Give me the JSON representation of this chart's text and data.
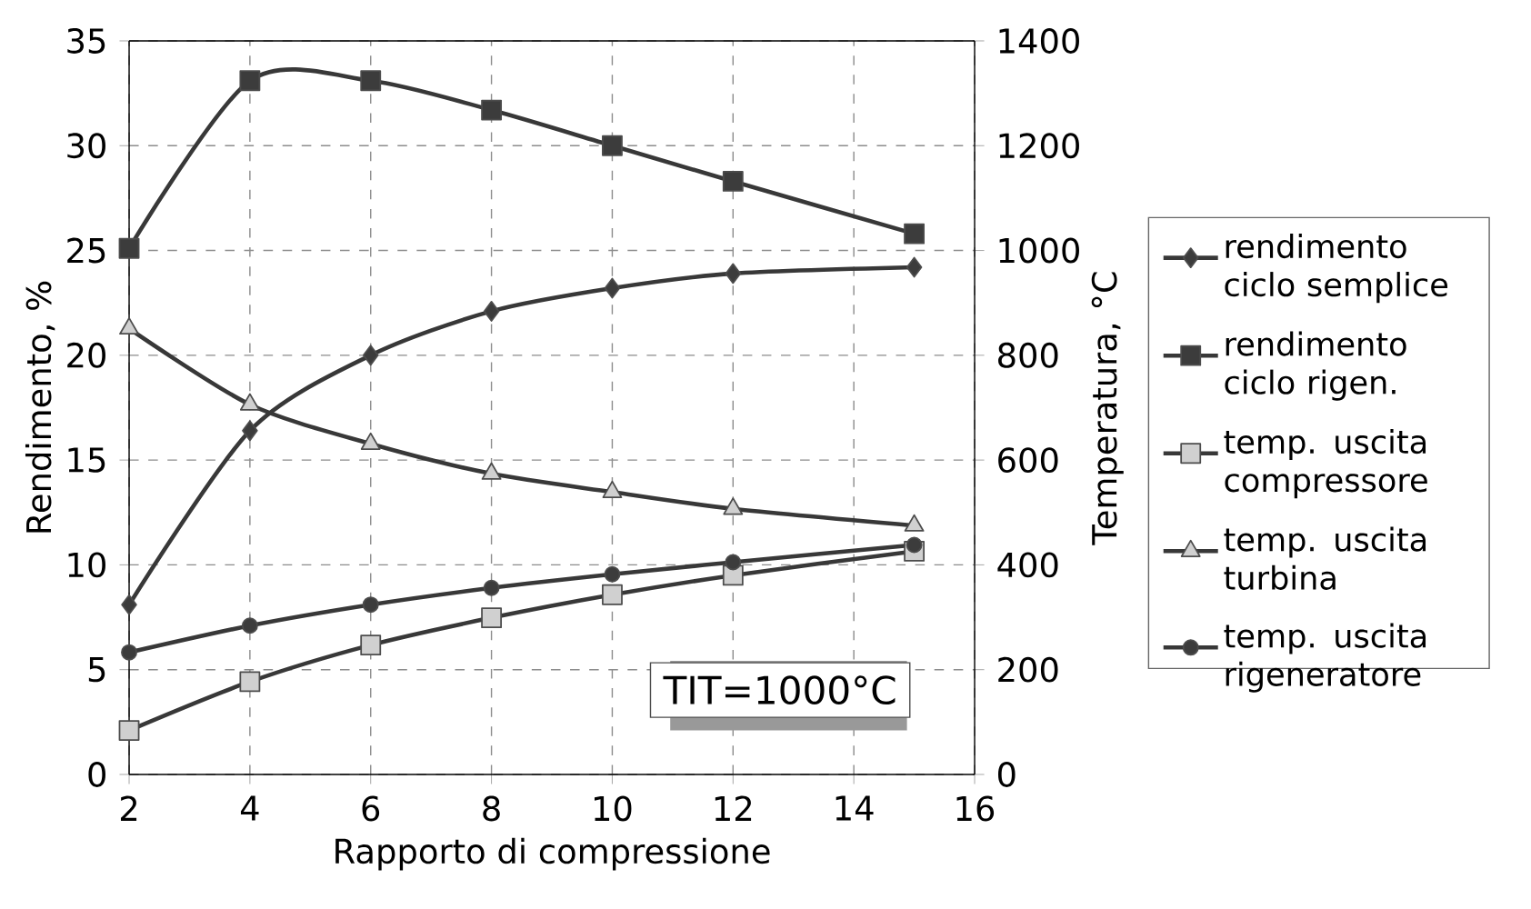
{
  "chart_data": {
    "type": "line",
    "xlabel": "Rapporto di compressione",
    "ylabel": "Rendimento, %",
    "y2label": "Temperatura, °C",
    "x": [
      2,
      4,
      6,
      8,
      10,
      12,
      15
    ],
    "xlim": [
      2,
      16
    ],
    "xticks": [
      2,
      4,
      6,
      8,
      10,
      12,
      14,
      16
    ],
    "ylim": [
      0,
      35
    ],
    "yticks": [
      0,
      5,
      10,
      15,
      20,
      25,
      30,
      35
    ],
    "y2lim": [
      0,
      1400
    ],
    "y2ticks": [
      0,
      200,
      400,
      600,
      800,
      1000,
      1200,
      1400
    ],
    "grid": true,
    "legend": "right",
    "annotations": [
      "TIT=1000°C"
    ],
    "series": [
      {
        "name": "rendimento ciclo semplice",
        "color": "#3c3c3c",
        "marker": "diamond",
        "values": [
          8.1,
          16.4,
          20.0,
          22.1,
          23.2,
          23.9,
          24.2
        ]
      },
      {
        "name": "rendimento ciclo rigen.",
        "color": "#3c3c3c",
        "marker": "square",
        "values": [
          25.1,
          33.1,
          33.1,
          31.7,
          30.0,
          28.3,
          25.8
        ]
      },
      {
        "name": "temp. uscita compressore",
        "color": "#d0d0d0",
        "marker": "square",
        "axis": "y2",
        "values": [
          84,
          177,
          247,
          299,
          343,
          380,
          426
        ]
      },
      {
        "name": "temp. uscita turbina",
        "color": "#d0d0d0",
        "marker": "triangle",
        "axis": "y2",
        "values": [
          851,
          706,
          631,
          574,
          539,
          507,
          475
        ]
      },
      {
        "name": "temp. uscita rigeneratore",
        "color": "#3c3c3c",
        "marker": "circle",
        "axis": "y2",
        "values": [
          233,
          284,
          324,
          356,
          382,
          405,
          438
        ]
      }
    ]
  }
}
